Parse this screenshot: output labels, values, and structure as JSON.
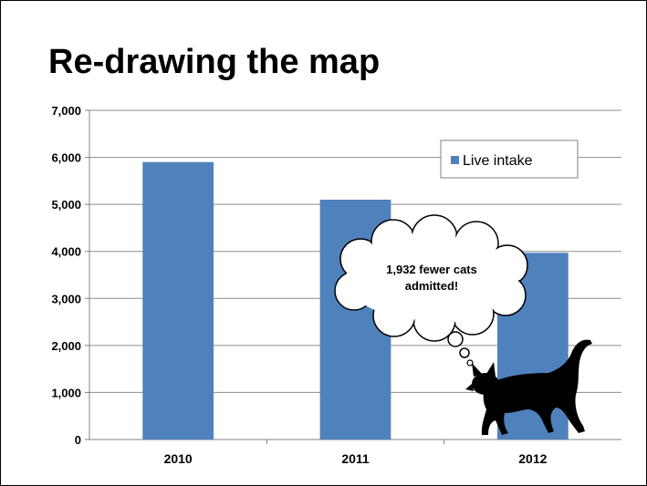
{
  "slide": {
    "title": "Re-drawing the map"
  },
  "chart_data": {
    "type": "bar",
    "categories": [
      "2010",
      "2011",
      "2012"
    ],
    "series": [
      {
        "name": "Live intake",
        "values": [
          5900,
          5100,
          3970
        ],
        "color": "#4F81BD"
      }
    ],
    "ylim": [
      0,
      7000
    ],
    "ytick_step": 1000,
    "ytick_labels": [
      "0",
      "1,000",
      "2,000",
      "3,000",
      "4,000",
      "5,000",
      "6,000",
      "7,000"
    ],
    "grid": true,
    "legend_position": "top-right",
    "xlabel": "",
    "ylabel": ""
  },
  "annotation": {
    "lines": [
      "1,932 fewer cats",
      "admitted!"
    ],
    "image": "cat-silhouette"
  }
}
